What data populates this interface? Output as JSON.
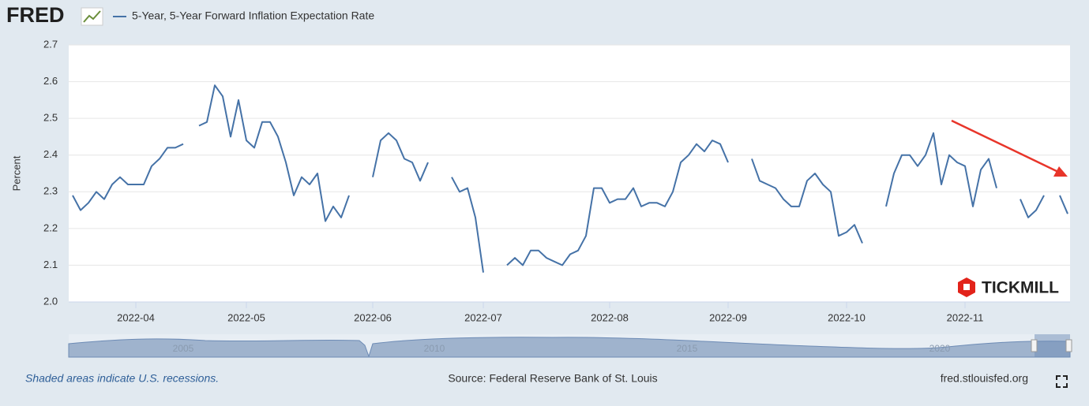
{
  "logo": "FRED",
  "watermark": "TICKMILL",
  "footer": {
    "note": "Shaded areas indicate U.S. recessions.",
    "source": "Source: Federal Reserve Bank of St. Louis",
    "site": "fred.stlouisfed.org"
  },
  "navigator": {
    "labels": [
      "2005",
      "2010",
      "2015",
      "2020"
    ]
  },
  "chart_data": {
    "type": "line",
    "ylabel": "Percent",
    "ylim": [
      2.0,
      2.7
    ],
    "yticks": [
      {
        "value": 2.0,
        "label": "2.0"
      },
      2.1,
      2.2,
      2.3,
      2.4,
      2.5,
      2.6,
      2.7
    ],
    "grid": true,
    "categories": [
      null,
      null,
      null,
      null,
      null,
      null,
      null,
      null,
      "2022-04",
      null,
      null,
      null,
      null,
      null,
      null,
      null,
      null,
      null,
      null,
      null,
      null,
      null,
      "2022-05",
      null,
      null,
      null,
      null,
      null,
      null,
      null,
      null,
      null,
      null,
      null,
      null,
      null,
      null,
      null,
      "2022-06",
      null,
      null,
      null,
      null,
      null,
      null,
      null,
      null,
      null,
      null,
      null,
      null,
      null,
      "2022-07",
      null,
      null,
      null,
      null,
      null,
      null,
      null,
      null,
      null,
      null,
      null,
      null,
      null,
      null,
      null,
      "2022-08",
      null,
      null,
      null,
      null,
      null,
      null,
      null,
      null,
      null,
      null,
      null,
      null,
      null,
      null,
      "2022-09",
      null,
      null,
      null,
      null,
      null,
      null,
      null,
      null,
      null,
      null,
      null,
      null,
      null,
      null,
      "2022-10",
      null,
      null,
      null,
      null,
      null,
      null,
      null,
      null,
      null,
      null,
      null,
      null,
      null,
      null,
      "2022-11",
      null,
      null,
      null,
      null,
      null,
      null,
      null,
      null,
      null,
      null,
      null,
      null,
      null
    ],
    "series": [
      {
        "name": "5-Year, 5-Year Forward Inflation Expectation Rate",
        "color": "#4572a7",
        "values": [
          2.29,
          2.25,
          2.27,
          2.3,
          2.28,
          2.32,
          2.34,
          2.32,
          2.32,
          2.32,
          2.37,
          2.39,
          2.42,
          2.42,
          2.43,
          null,
          2.48,
          2.49,
          2.59,
          2.56,
          2.45,
          2.55,
          2.44,
          2.42,
          2.49,
          2.49,
          2.45,
          2.38,
          2.29,
          2.34,
          2.32,
          2.35,
          2.22,
          2.26,
          2.23,
          2.29,
          null,
          null,
          2.34,
          2.44,
          2.46,
          2.44,
          2.39,
          2.38,
          2.33,
          2.38,
          null,
          null,
          2.34,
          2.3,
          2.31,
          2.23,
          2.08,
          null,
          null,
          2.1,
          2.12,
          2.1,
          2.14,
          2.14,
          2.12,
          2.11,
          2.1,
          2.13,
          2.14,
          2.18,
          2.31,
          2.31,
          2.27,
          2.28,
          2.28,
          2.31,
          2.26,
          2.27,
          2.27,
          2.26,
          2.3,
          2.38,
          2.4,
          2.43,
          2.41,
          2.44,
          2.43,
          2.38,
          null,
          null,
          2.39,
          2.33,
          2.32,
          2.31,
          2.28,
          2.26,
          2.26,
          2.33,
          2.35,
          2.32,
          2.3,
          2.18,
          2.19,
          2.21,
          2.16,
          null,
          null,
          2.26,
          2.35,
          2.4,
          2.4,
          2.37,
          2.4,
          2.46,
          2.32,
          2.4,
          2.38,
          2.37,
          2.26,
          2.36,
          2.39,
          2.31,
          null,
          null,
          2.28,
          2.23,
          2.25,
          2.29,
          null,
          2.29,
          2.24
        ]
      }
    ]
  }
}
